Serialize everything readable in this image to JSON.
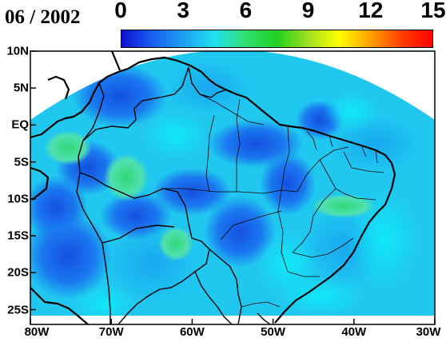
{
  "title": "06 / 2002",
  "colorbar": {
    "ticks": [
      "0",
      "3",
      "6",
      "9",
      "12",
      "15"
    ],
    "range": [
      0,
      15
    ],
    "stops": [
      "#1010d0",
      "#1860f0",
      "#1ea0f0",
      "#20e0f0",
      "#30e070",
      "#20d020",
      "#a0e020",
      "#ffff00",
      "#ffa000",
      "#ff4000",
      "#ff0000"
    ]
  },
  "map": {
    "lat_labels": [
      "10N",
      "5N",
      "EQ",
      "5S",
      "10S",
      "15S",
      "20S",
      "25S"
    ],
    "lon_labels": [
      "80W",
      "70W",
      "60W",
      "50W",
      "40W",
      "30W"
    ],
    "lat_range": [
      -27,
      10
    ],
    "lon_range": [
      -80,
      -30
    ],
    "ocean_color": "#ffffff",
    "land_color": "#ffffff"
  }
}
